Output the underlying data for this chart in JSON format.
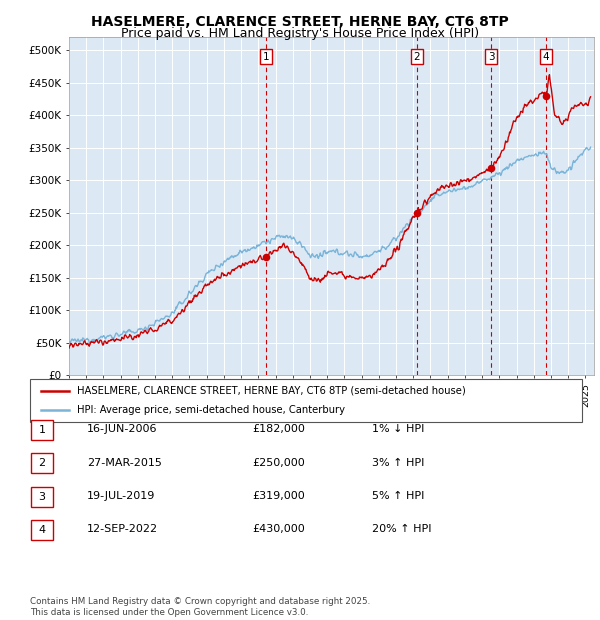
{
  "title": "HASELMERE, CLARENCE STREET, HERNE BAY, CT6 8TP",
  "subtitle": "Price paid vs. HM Land Registry's House Price Index (HPI)",
  "ylabel_ticks": [
    "£0",
    "£50K",
    "£100K",
    "£150K",
    "£200K",
    "£250K",
    "£300K",
    "£350K",
    "£400K",
    "£450K",
    "£500K"
  ],
  "ytick_vals": [
    0,
    50000,
    100000,
    150000,
    200000,
    250000,
    300000,
    350000,
    400000,
    450000,
    500000
  ],
  "ylim": [
    0,
    520000
  ],
  "xlim_start": 1995.0,
  "xlim_end": 2025.5,
  "background_color": "#dce9f5",
  "sale_dates": [
    2006.46,
    2015.21,
    2019.54,
    2022.71
  ],
  "sale_prices": [
    182000,
    250000,
    319000,
    430000
  ],
  "sale_labels": [
    "1",
    "2",
    "3",
    "4"
  ],
  "legend_line1": "HASELMERE, CLARENCE STREET, HERNE BAY, CT6 8TP (semi-detached house)",
  "legend_line2": "HPI: Average price, semi-detached house, Canterbury",
  "table_rows": [
    [
      "1",
      "16-JUN-2006",
      "£182,000",
      "1% ↓ HPI"
    ],
    [
      "2",
      "27-MAR-2015",
      "£250,000",
      "3% ↑ HPI"
    ],
    [
      "3",
      "19-JUL-2019",
      "£319,000",
      "5% ↑ HPI"
    ],
    [
      "4",
      "12-SEP-2022",
      "£430,000",
      "20% ↑ HPI"
    ]
  ],
  "footer": "Contains HM Land Registry data © Crown copyright and database right 2025.\nThis data is licensed under the Open Government Licence v3.0.",
  "hpi_color": "#7ab4d8",
  "price_color": "#cc0000",
  "grid_color": "#ffffff",
  "title_fontsize": 10,
  "subtitle_fontsize": 9
}
